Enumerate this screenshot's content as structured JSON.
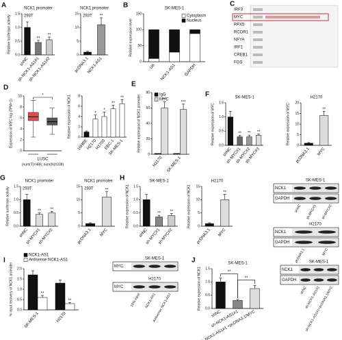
{
  "chart_data": [
    {
      "type": "bar",
      "panel": "A",
      "title": "NCK1 promoter",
      "subtitle": "293T",
      "ylabel": "Relative luciferase activity",
      "categories": [
        "shNC",
        "sh-NCK1-AS1#1",
        "sh-NCK1-AS1#2"
      ],
      "values": [
        1.0,
        0.45,
        0.55
      ],
      "errors": [
        0.2,
        0.08,
        0.1
      ],
      "colors": [
        "#111111",
        "#777777",
        "#cccccc"
      ],
      "sig": [
        null,
        "**",
        "**"
      ],
      "ylim": [
        0,
        1.5
      ],
      "yticks": [
        {
          "value": 0,
          "label": "0.0"
        },
        0.5,
        {
          "value": 1,
          "label": "1.0"
        },
        1.5
      ]
    },
    {
      "type": "bar",
      "title": "NCK1 promoter",
      "subtitle": "293T",
      "categories": [
        "pcDNA3.1",
        "NCK1-AS1"
      ],
      "values": [
        1,
        11
      ],
      "errors": [
        0.3,
        2.5
      ],
      "colors": [
        "#111111",
        "#999999"
      ],
      "sig": [
        null,
        "**"
      ],
      "ylim": [
        0,
        15
      ],
      "yticks": [
        0,
        5,
        10,
        15
      ]
    },
    {
      "type": "stacked_bar",
      "panel": "B",
      "title": "SK-MES-1",
      "ylabel": "Relative expression level",
      "categories": [
        "U6",
        "NCK1-AS1",
        "GAPDH"
      ],
      "series": [
        {
          "name": "Cytoplasm",
          "color": "#ffffff",
          "values": [
            10,
            30,
            88
          ]
        },
        {
          "name": "Nucleus",
          "color": "#111111",
          "values": [
            90,
            70,
            12
          ]
        }
      ],
      "legend": "upper right",
      "ylim": [
        0,
        150
      ],
      "yticks": [
        0,
        50,
        100,
        150
      ]
    },
    {
      "type": "box",
      "panel": "D",
      "ylabel": "Expression of MYC log (TPM+1)",
      "xlabel": "LUSC",
      "note": "(num(T)=486; num(N)=338)",
      "boxes": [
        {
          "color": "#e8474b",
          "whisker_low": 2.5,
          "q1": 5.5,
          "median": 6.2,
          "q3": 7.0,
          "whisker_high": 9.2
        },
        {
          "color": "#555555",
          "whisker_low": 3.0,
          "q1": 4.7,
          "median": 5.3,
          "q3": 6.0,
          "whisker_high": 7.8
        }
      ],
      "sig": "*",
      "ylim": [
        0,
        10
      ],
      "yticks": [
        0,
        2,
        4,
        6,
        8,
        10
      ]
    },
    {
      "type": "bar",
      "ylabel": "Relative expression of NCK1",
      "categories": [
        "16HBE",
        "H2170",
        "H1703",
        "EBC-1",
        "SK-MES-1"
      ],
      "values": [
        1,
        3.5,
        4,
        5.5,
        6.5
      ],
      "errors": [
        0.2,
        0.8,
        0.9,
        0.7,
        0.8
      ],
      "colors": [
        "#111111",
        "#ffffff",
        "#ffffff",
        "#ffffff",
        "#ffffff"
      ],
      "sig": [
        null,
        "*",
        "*",
        "**",
        "**"
      ],
      "ylim": [
        0,
        8
      ],
      "yticks": [
        0,
        2,
        4,
        6,
        8
      ]
    },
    {
      "type": "grouped_bar",
      "panel": "E",
      "ylabel": "Relative expression of NCK1 promoter",
      "categories": [
        "H2170",
        "SK-MES-1"
      ],
      "series": [
        {
          "name": "IgG",
          "color": "#111111",
          "values": [
            1,
            1
          ]
        },
        {
          "name": "MYC",
          "color": "#dddddd",
          "values": [
            60,
            58
          ],
          "errors": [
            8,
            7
          ],
          "sig": [
            "***",
            "***"
          ]
        }
      ],
      "legend": "upper left",
      "ylim": [
        0,
        80
      ],
      "yticks": [
        0,
        20,
        40,
        60,
        80
      ]
    },
    {
      "type": "bar",
      "panel": "F",
      "title": "SK-MES-1",
      "ylabel": "Relative expression of MYC",
      "categories": [
        "shNC",
        "sh-MYC#1",
        "sh-MYC#2",
        "sh-MYC#3"
      ],
      "values": [
        1.0,
        0.3,
        0.3,
        0.35
      ],
      "errors": [
        0.2,
        0.05,
        0.06,
        0.05
      ],
      "colors": [
        "#111111",
        "#666666",
        "#999999",
        "#dddddd"
      ],
      "sig": [
        null,
        "**",
        "**",
        "**"
      ],
      "ylim": [
        0,
        1.5
      ],
      "yticks": [
        {
          "value": 0,
          "label": "0.0"
        },
        0.5,
        {
          "value": 1,
          "label": "1.0"
        },
        1.5
      ]
    },
    {
      "type": "bar",
      "title": "H2170",
      "ylabel": "Relative expression of MYC",
      "categories": [
        "pcDNA3.1",
        "MYC"
      ],
      "values": [
        1,
        14
      ],
      "errors": [
        0.3,
        2
      ],
      "colors": [
        "#111111",
        "#dddddd"
      ],
      "sig": [
        null,
        "**"
      ],
      "ylim": [
        0,
        20
      ],
      "yticks": [
        0,
        5,
        10,
        15,
        20
      ]
    },
    {
      "type": "bar",
      "panel": "G",
      "title": "NCK1 promoter",
      "subtitle": "293T",
      "ylabel": "Relative luciferase activity",
      "categories": [
        "shNC",
        "sh-MYC#1",
        "sh-MYC#2"
      ],
      "values": [
        1.0,
        0.45,
        0.5
      ],
      "errors": [
        0.2,
        0.05,
        0.06
      ],
      "colors": [
        "#111111",
        "#dddddd",
        "#dddddd"
      ],
      "sig": [
        null,
        "**",
        "**"
      ],
      "ylim": [
        0,
        1.5
      ],
      "yticks": [
        {
          "value": 0,
          "label": "0.0"
        },
        0.5,
        {
          "value": 1,
          "label": "1.0"
        },
        1.5
      ]
    },
    {
      "type": "bar",
      "title": "NCK1 promoter",
      "subtitle": "293T",
      "categories": [
        "pcDNA3.1",
        "MYC"
      ],
      "values": [
        1,
        11
      ],
      "errors": [
        0.3,
        2
      ],
      "colors": [
        "#111111",
        "#dddddd"
      ],
      "sig": [
        null,
        "**"
      ],
      "ylim": [
        0,
        15
      ],
      "yticks": [
        0,
        5,
        10,
        15
      ]
    },
    {
      "type": "bar",
      "panel": "H",
      "title": "SK-MES-1",
      "ylabel": "Relative expression of NCK1",
      "categories": [
        "shNC",
        "sh-MYC#1",
        "sh-MYC#2"
      ],
      "values": [
        1.0,
        0.35,
        0.4
      ],
      "errors": [
        0.2,
        0.06,
        0.08
      ],
      "colors": [
        "#111111",
        "#888888",
        "#cccccc"
      ],
      "sig": [
        null,
        "**",
        "**"
      ],
      "ylim": [
        0,
        1.5
      ],
      "yticks": [
        {
          "value": 0,
          "label": "0.0"
        },
        0.5,
        {
          "value": 1,
          "label": "1.0"
        },
        1.5
      ]
    },
    {
      "type": "bar",
      "title": "H2170",
      "ylabel": "Relative expression of NCK1",
      "categories": [
        "pcDNA3.1",
        "MYC"
      ],
      "values": [
        1,
        10
      ],
      "errors": [
        0.3,
        2
      ],
      "colors": [
        "#111111",
        "#dddddd"
      ],
      "sig": [
        null,
        "**"
      ],
      "ylim": [
        0,
        15
      ],
      "yticks": [
        0,
        5,
        10,
        15
      ]
    },
    {
      "type": "grouped_bar",
      "panel": "I",
      "ylabel": "% input recovery of NCK1 promoter",
      "categories": [
        "SK-MES-1",
        "H2170"
      ],
      "series": [
        {
          "name": "NCK1-AS1",
          "color": "#111111",
          "values": [
            1.7,
            1.3
          ],
          "errors": [
            0.2,
            0.15
          ]
        },
        {
          "name": "Antisense NCK1-AS1",
          "color": "#ffffff",
          "values": [
            0.6,
            0.3
          ],
          "errors": [
            0.1,
            0.05
          ],
          "sig": [
            "**",
            "**"
          ]
        }
      ],
      "legend": "above",
      "ylim": [
        0,
        2
      ],
      "yticks": [
        {
          "value": 0,
          "label": "0.0"
        },
        0.5,
        {
          "value": 1,
          "label": "1.0"
        },
        1.5,
        {
          "value": 2,
          "label": "2.0"
        }
      ]
    },
    {
      "type": "bar",
      "panel": "J",
      "title": "SK-MES-1",
      "ylabel": "Relative expression of NCK1",
      "categories": [
        "shNC",
        "sh-NCK1-AS1#1",
        "sh-NCK1-AS1#1 +pcDNA3.1/MYC"
      ],
      "values": [
        1.0,
        0.3,
        0.75
      ],
      "errors": [
        0.15,
        0.04,
        0.12
      ],
      "colors": [
        "#111111",
        "#888888",
        "#dddddd"
      ],
      "brackets": [
        {
          "from": 0,
          "to": 1,
          "label": "**"
        },
        {
          "from": 1,
          "to": 2,
          "label": "**"
        }
      ],
      "ylim": [
        0,
        1.5
      ],
      "yticks": [
        {
          "value": 0,
          "label": "0.0"
        },
        0.5,
        {
          "value": 1,
          "label": "1.0"
        },
        1.5
      ]
    }
  ],
  "alignment": {
    "panel": "C",
    "rows": [
      "IRF3",
      "MYC",
      "RFX5",
      "RCOR1",
      "NFYA",
      "IRF1",
      "CREB1",
      "FOS"
    ],
    "highlight_row": 1
  },
  "blots": [
    {
      "title": "SK-MES-1",
      "rows": [
        "NCK1",
        "GAPDH"
      ],
      "lanes": [
        "shNC",
        "sh-MYC#1",
        "sh-MYC#2"
      ]
    },
    {
      "title": "H2170",
      "rows": [
        "NCK1",
        "GAPDH"
      ],
      "lanes": [
        "pcDNA3.1",
        "MYC"
      ]
    },
    {
      "title": "SK-MES-1",
      "rows": [
        "MYC"
      ]
    },
    {
      "title": "H2170",
      "rows": [
        "MYC"
      ],
      "lanes": [
        "10% input",
        "NCK1-AS1",
        "Antisense NCK1-AS1"
      ]
    },
    {
      "title": "SK-MES-1",
      "rows": [
        "NCK1",
        "GAPDH"
      ],
      "lanes": [
        "shNC",
        "sh-NCK1-AS1#1",
        "sh-NCK1-AS1#1+pcDNA3.1/MYC"
      ]
    }
  ]
}
